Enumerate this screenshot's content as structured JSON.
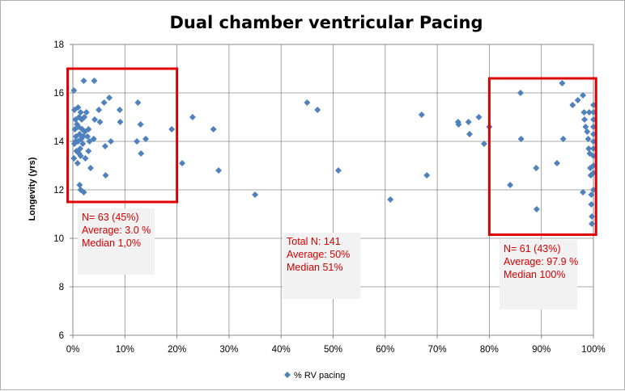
{
  "chart_data": {
    "type": "scatter",
    "title": "Dual chamber ventricular Pacing",
    "xlabel": "",
    "ylabel": "Longevity (yrs)",
    "xlim": [
      0,
      100
    ],
    "ylim": [
      6,
      18
    ],
    "x_ticks": [
      "0%",
      "10%",
      "20%",
      "30%",
      "40%",
      "50%",
      "60%",
      "70%",
      "80%",
      "90%",
      "100%"
    ],
    "y_ticks": [
      "6",
      "8",
      "10",
      "12",
      "14",
      "16",
      "18"
    ],
    "grid": "both",
    "legend_position": "bottom",
    "marker_color": "#4f81bd",
    "series": [
      {
        "name": "% RV pacing",
        "points": [
          [
            0.2,
            16.1
          ],
          [
            0.3,
            15.3
          ],
          [
            0.5,
            14.9
          ],
          [
            0.4,
            14.5
          ],
          [
            0.6,
            14.2
          ],
          [
            0.3,
            13.9
          ],
          [
            0.7,
            13.6
          ],
          [
            0.2,
            13.3
          ],
          [
            0.8,
            14.7
          ],
          [
            0.5,
            14.0
          ],
          [
            1.0,
            15.4
          ],
          [
            1.2,
            15.0
          ],
          [
            1.1,
            14.6
          ],
          [
            1.3,
            14.3
          ],
          [
            1.0,
            14.0
          ],
          [
            1.4,
            13.7
          ],
          [
            1.2,
            13.5
          ],
          [
            0.9,
            13.1
          ],
          [
            1.5,
            15.2
          ],
          [
            1.7,
            14.9
          ],
          [
            1.8,
            14.5
          ],
          [
            1.6,
            14.1
          ],
          [
            1.9,
            13.9
          ],
          [
            1.5,
            13.4
          ],
          [
            1.3,
            12.2
          ],
          [
            1.5,
            12.0
          ],
          [
            2.1,
            16.5
          ],
          [
            2.2,
            15.0
          ],
          [
            2.3,
            14.4
          ],
          [
            2.0,
            14.2
          ],
          [
            2.4,
            13.3
          ],
          [
            2.1,
            11.9
          ],
          [
            2.6,
            15.2
          ],
          [
            2.8,
            14.2
          ],
          [
            3.0,
            14.5
          ],
          [
            3.2,
            14.0
          ],
          [
            3.0,
            13.6
          ],
          [
            3.4,
            12.9
          ],
          [
            4.1,
            16.5
          ],
          [
            4.2,
            14.9
          ],
          [
            4.0,
            14.1
          ],
          [
            5.0,
            15.3
          ],
          [
            5.2,
            14.8
          ],
          [
            6.0,
            15.6
          ],
          [
            6.2,
            13.8
          ],
          [
            6.3,
            12.6
          ],
          [
            7.0,
            15.8
          ],
          [
            7.3,
            14.0
          ],
          [
            9.0,
            15.3
          ],
          [
            9.1,
            14.8
          ],
          [
            12.5,
            15.6
          ],
          [
            12.3,
            14.0
          ],
          [
            13.0,
            14.7
          ],
          [
            13.1,
            13.5
          ],
          [
            14.0,
            14.1
          ],
          [
            19.0,
            14.5
          ],
          [
            21.0,
            13.1
          ],
          [
            23.0,
            15.0
          ],
          [
            27.0,
            14.5
          ],
          [
            28.0,
            12.8
          ],
          [
            35.0,
            11.8
          ],
          [
            45.0,
            15.6
          ],
          [
            47.0,
            15.3
          ],
          [
            51.0,
            12.8
          ],
          [
            61.0,
            11.6
          ],
          [
            67.0,
            15.1
          ],
          [
            68.0,
            12.6
          ],
          [
            74.0,
            14.8
          ],
          [
            74.1,
            14.7
          ],
          [
            76.0,
            14.8
          ],
          [
            76.2,
            14.3
          ],
          [
            78.0,
            15.0
          ],
          [
            79.0,
            13.9
          ],
          [
            80.0,
            14.6
          ],
          [
            84.0,
            12.2
          ],
          [
            86.0,
            16.0
          ],
          [
            86.1,
            14.1
          ],
          [
            89.0,
            12.9
          ],
          [
            89.1,
            11.2
          ],
          [
            93.0,
            13.1
          ],
          [
            94.0,
            16.4
          ],
          [
            94.2,
            14.1
          ],
          [
            96.0,
            15.5
          ],
          [
            97.0,
            15.7
          ],
          [
            98.0,
            15.9
          ],
          [
            98.2,
            15.2
          ],
          [
            98.3,
            14.9
          ],
          [
            98.5,
            14.6
          ],
          [
            98.0,
            11.9
          ],
          [
            98.8,
            14.4
          ],
          [
            99.0,
            14.1
          ],
          [
            99.1,
            13.7
          ],
          [
            99.2,
            15.2
          ],
          [
            99.3,
            13.5
          ],
          [
            99.4,
            12.9
          ],
          [
            99.5,
            12.6
          ],
          [
            99.6,
            11.8
          ],
          [
            99.6,
            11.4
          ],
          [
            99.7,
            10.9
          ],
          [
            99.7,
            10.6
          ],
          [
            100.0,
            15.5
          ],
          [
            100.0,
            15.2
          ],
          [
            100.0,
            14.9
          ],
          [
            100.0,
            14.6
          ],
          [
            100.0,
            14.3
          ],
          [
            100.0,
            14.0
          ],
          [
            100.0,
            13.7
          ],
          [
            100.0,
            13.4
          ],
          [
            100.0,
            13.0
          ],
          [
            100.0,
            12.7
          ],
          [
            100.0,
            12.0
          ]
        ]
      }
    ],
    "highlight_boxes": [
      {
        "x": [
          -1,
          20
        ],
        "y": [
          11.5,
          17
        ]
      },
      {
        "x": [
          80,
          100.5
        ],
        "y": [
          10.15,
          16.6
        ]
      }
    ],
    "highlight_color": "#e00000"
  },
  "annotations": {
    "left": {
      "lines": [
        "N= 63 (45%)",
        "Average: 3.0 %",
        "Median 1,0%"
      ]
    },
    "center": {
      "lines": [
        "Total N: 141",
        "Average:  50%",
        "Median 51%"
      ]
    },
    "right": {
      "lines": [
        "N= 61  (43%)",
        "Average: 97.9 %",
        "Median 100%"
      ]
    }
  }
}
